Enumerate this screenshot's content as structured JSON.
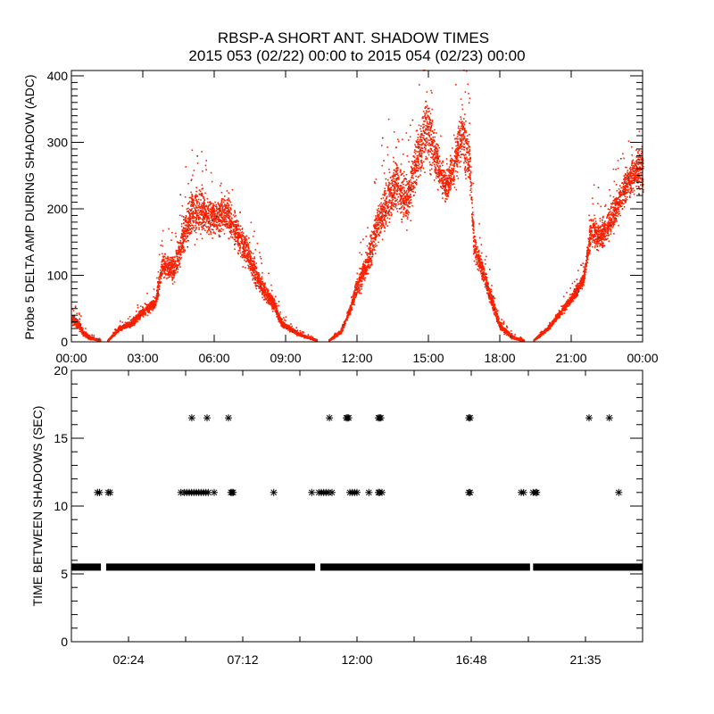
{
  "title": "RBSP-A SHORT ANT. SHADOW TIMES",
  "subtitle": "2015 053 (02/22) 00:00 to 2015 054 (02/23) 00:00",
  "colors": {
    "points": "#ff2000",
    "secondary_points": "#404040",
    "markers": "#000000",
    "axes": "#000000",
    "background": "#ffffff"
  },
  "chart_data": [
    {
      "type": "scatter",
      "ylabel": "Probe 5 DELTA AMP DURING SHADOW (ADC)",
      "xlabel": "",
      "xlim_hours": [
        0,
        24
      ],
      "ylim": [
        0,
        408
      ],
      "x_tick_labels": [
        "00:00",
        "03:00",
        "06:00",
        "09:00",
        "12:00",
        "15:00",
        "18:00",
        "21:00",
        "00:00"
      ],
      "y_tick_labels": [
        "0",
        "100",
        "200",
        "300",
        "400"
      ],
      "envelope_columns": [
        "hour",
        "min_adc",
        "max_adc"
      ],
      "envelope_segments": [
        [
          [
            0.0,
            20,
            45
          ],
          [
            0.3,
            15,
            35
          ],
          [
            0.5,
            5,
            18
          ],
          [
            0.8,
            2,
            8
          ],
          [
            1.2,
            0,
            3
          ]
        ],
        [
          [
            1.5,
            0,
            2
          ],
          [
            2.0,
            15,
            25
          ],
          [
            2.5,
            20,
            35
          ],
          [
            3.0,
            35,
            55
          ],
          [
            3.5,
            45,
            70
          ],
          [
            3.8,
            90,
            140
          ],
          [
            4.3,
            80,
            140
          ],
          [
            4.7,
            120,
            200
          ],
          [
            5.0,
            140,
            250
          ],
          [
            5.5,
            150,
            240
          ],
          [
            6.0,
            150,
            220
          ],
          [
            6.5,
            150,
            240
          ],
          [
            7.0,
            120,
            200
          ],
          [
            7.5,
            90,
            150
          ],
          [
            8.0,
            60,
            100
          ],
          [
            8.5,
            40,
            70
          ],
          [
            8.8,
            20,
            35
          ],
          [
            9.5,
            8,
            15
          ],
          [
            10.3,
            0,
            3
          ]
        ],
        [
          [
            10.8,
            0,
            3
          ],
          [
            11.3,
            10,
            20
          ],
          [
            11.7,
            40,
            60
          ],
          [
            12.0,
            60,
            110
          ],
          [
            12.4,
            90,
            140
          ],
          [
            12.8,
            130,
            220
          ],
          [
            13.2,
            150,
            260
          ],
          [
            13.6,
            180,
            300
          ],
          [
            14.1,
            160,
            260
          ],
          [
            14.5,
            220,
            330
          ],
          [
            14.9,
            250,
            400
          ],
          [
            15.3,
            220,
            330
          ],
          [
            15.7,
            200,
            270
          ],
          [
            16.0,
            210,
            300
          ],
          [
            16.4,
            250,
            380
          ],
          [
            16.7,
            220,
            320
          ],
          [
            16.9,
            110,
            180
          ],
          [
            17.3,
            80,
            120
          ],
          [
            17.7,
            40,
            70
          ],
          [
            18.0,
            15,
            30
          ],
          [
            18.5,
            3,
            10
          ],
          [
            19.0,
            0,
            3
          ]
        ],
        [
          [
            19.4,
            0,
            3
          ],
          [
            20.0,
            15,
            25
          ],
          [
            20.5,
            35,
            50
          ],
          [
            21.0,
            55,
            75
          ],
          [
            21.5,
            80,
            110
          ],
          [
            21.8,
            130,
            200
          ],
          [
            22.3,
            130,
            190
          ],
          [
            22.8,
            160,
            230
          ],
          [
            23.3,
            200,
            270
          ],
          [
            23.7,
            220,
            300
          ],
          [
            24.0,
            200,
            320
          ]
        ]
      ]
    },
    {
      "type": "scatter",
      "ylabel": "TIME BETWEEN SHADOWS (SEC)",
      "xlabel": "",
      "xlim_hours": [
        0,
        24
      ],
      "ylim": [
        0,
        20
      ],
      "x_tick_labels": [
        "02:24",
        "07:12",
        "12:00",
        "16:48",
        "21:35"
      ],
      "y_tick_labels": [
        "0",
        "5",
        "10",
        "15",
        "20"
      ],
      "marker": "asterisk",
      "continuous_runs": {
        "y": 5.5,
        "hour_ranges": [
          [
            0,
            1.24
          ],
          [
            1.46,
            10.24
          ],
          [
            10.46,
            19.27
          ],
          [
            19.4,
            24
          ]
        ]
      },
      "points_y11_hours": [
        1.1,
        1.18,
        1.55,
        1.62,
        4.6,
        4.75,
        4.85,
        4.95,
        5.05,
        5.15,
        5.25,
        5.35,
        5.45,
        5.55,
        5.65,
        5.75,
        6.0,
        6.7,
        6.75,
        6.8,
        8.5,
        10.1,
        10.4,
        10.5,
        10.6,
        10.7,
        10.8,
        10.95,
        11.7,
        11.8,
        11.9,
        12.0,
        12.5,
        12.9,
        12.95,
        13.05,
        16.7,
        16.75,
        18.9,
        19.0,
        19.4,
        19.5,
        19.55,
        23.0
      ],
      "points_y16_5_hours": [
        5.06,
        5.7,
        6.6,
        10.84,
        11.55,
        11.6,
        11.65,
        12.9,
        12.95,
        13.0,
        16.7,
        16.75,
        21.75,
        22.6
      ]
    }
  ]
}
